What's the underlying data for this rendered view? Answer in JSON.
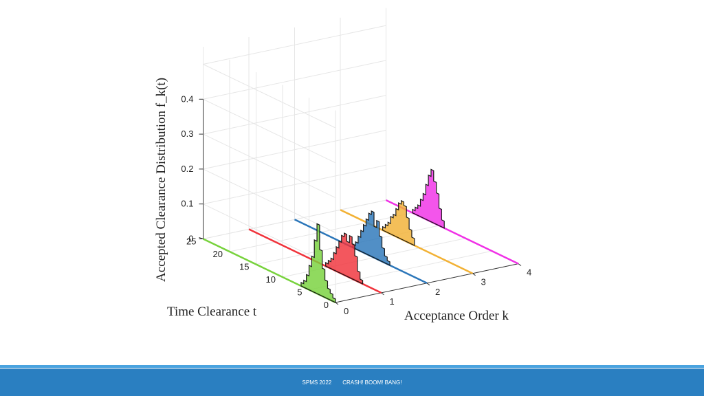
{
  "colors": {
    "footer_bg": "#2a7fc1",
    "footer_line": "#4aa3df",
    "grid": "#e6e6e6",
    "axis": "#333333"
  },
  "footer": {
    "event": "SPMS 2022",
    "title": "CRASH! BOOM! BANG!"
  },
  "chart_data": {
    "type": "histogram-3d",
    "xlabel": "Acceptance Order k",
    "ylabel": "Time Clearance t",
    "zlabel": "Accepted Clearance Distribution f_k(t)",
    "k_ticks": [
      "0",
      "1",
      "2",
      "3",
      "4"
    ],
    "t_ticks": [
      "0",
      "5",
      "10",
      "15",
      "20",
      "25"
    ],
    "z_ticks": [
      "0",
      "0.1",
      "0.2",
      "0.3",
      "0.4"
    ],
    "klim": [
      0,
      4
    ],
    "tlim": [
      0,
      25
    ],
    "zlim": [
      0,
      0.4
    ],
    "grid": true,
    "bin_width": 0.5,
    "series": [
      {
        "k": 0,
        "color": "#77d23c",
        "bins": [
          {
            "t": 0,
            "f": 0.01
          },
          {
            "t": 0.5,
            "f": 0.02
          },
          {
            "t": 1,
            "f": 0.03
          },
          {
            "t": 1.5,
            "f": 0.05
          },
          {
            "t": 2,
            "f": 0.08
          },
          {
            "t": 2.5,
            "f": 0.13
          },
          {
            "t": 3,
            "f": 0.2
          },
          {
            "t": 3.5,
            "f": 0.15
          },
          {
            "t": 4,
            "f": 0.1
          },
          {
            "t": 4.5,
            "f": 0.07
          },
          {
            "t": 5,
            "f": 0.04
          },
          {
            "t": 5.5,
            "f": 0.02
          },
          {
            "t": 6,
            "f": 0.01
          }
        ]
      },
      {
        "k": 1,
        "color": "#f0323a",
        "bins": [
          {
            "t": 3.5,
            "f": 0.01
          },
          {
            "t": 4,
            "f": 0.03
          },
          {
            "t": 4.5,
            "f": 0.07
          },
          {
            "t": 5,
            "f": 0.1
          },
          {
            "t": 5.5,
            "f": 0.12
          },
          {
            "t": 6,
            "f": 0.1
          },
          {
            "t": 6.5,
            "f": 0.12
          },
          {
            "t": 7,
            "f": 0.11
          },
          {
            "t": 7.5,
            "f": 0.09
          },
          {
            "t": 8,
            "f": 0.07
          },
          {
            "t": 8.5,
            "f": 0.05
          },
          {
            "t": 9,
            "f": 0.03
          },
          {
            "t": 9.5,
            "f": 0.02
          },
          {
            "t": 10,
            "f": 0.01
          }
        ]
      },
      {
        "k": 2,
        "color": "#2b76b9",
        "bins": [
          {
            "t": 7,
            "f": 0.01
          },
          {
            "t": 7.5,
            "f": 0.02
          },
          {
            "t": 8,
            "f": 0.04
          },
          {
            "t": 8.5,
            "f": 0.07
          },
          {
            "t": 9,
            "f": 0.11
          },
          {
            "t": 9.5,
            "f": 0.09
          },
          {
            "t": 10,
            "f": 0.13
          },
          {
            "t": 10.5,
            "f": 0.12
          },
          {
            "t": 11,
            "f": 0.1
          },
          {
            "t": 11.5,
            "f": 0.08
          },
          {
            "t": 12,
            "f": 0.06
          },
          {
            "t": 12.5,
            "f": 0.04
          },
          {
            "t": 13,
            "f": 0.02
          },
          {
            "t": 13.5,
            "f": 0.01
          }
        ]
      },
      {
        "k": 3,
        "color": "#f2b134",
        "bins": [
          {
            "t": 11,
            "f": 0.02
          },
          {
            "t": 11.5,
            "f": 0.04
          },
          {
            "t": 12,
            "f": 0.07
          },
          {
            "t": 12.5,
            "f": 0.1
          },
          {
            "t": 13,
            "f": 0.11
          },
          {
            "t": 13.5,
            "f": 0.1
          },
          {
            "t": 14,
            "f": 0.08
          },
          {
            "t": 14.5,
            "f": 0.06
          },
          {
            "t": 15,
            "f": 0.05
          },
          {
            "t": 15.5,
            "f": 0.03
          },
          {
            "t": 16,
            "f": 0.02
          },
          {
            "t": 16.5,
            "f": 0.01
          }
        ]
      },
      {
        "k": 4,
        "color": "#f030e6",
        "bins": [
          {
            "t": 14,
            "f": 0.02
          },
          {
            "t": 14.5,
            "f": 0.05
          },
          {
            "t": 15,
            "f": 0.09
          },
          {
            "t": 15.5,
            "f": 0.12
          },
          {
            "t": 16,
            "f": 0.15
          },
          {
            "t": 16.5,
            "f": 0.13
          },
          {
            "t": 17,
            "f": 0.1
          },
          {
            "t": 17.5,
            "f": 0.07
          },
          {
            "t": 18,
            "f": 0.05
          },
          {
            "t": 18.5,
            "f": 0.03
          },
          {
            "t": 19,
            "f": 0.02
          },
          {
            "t": 19.5,
            "f": 0.01
          }
        ]
      }
    ]
  }
}
